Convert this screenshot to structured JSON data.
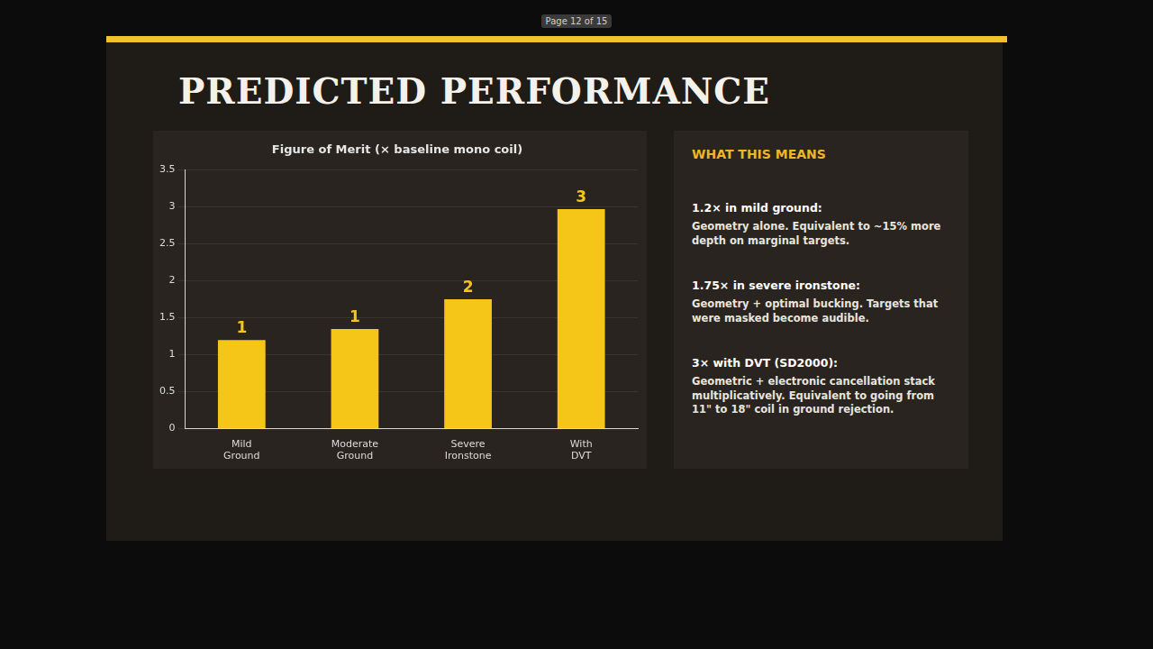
{
  "slide": {
    "page": "Page 12 of 15",
    "title": "PREDICTED PERFORMANCE",
    "panel": {
      "heading": "WHAT THIS MEANS",
      "items": [
        {
          "lead": "1.2× in mild ground:",
          "body": "Geometry alone. Equivalent to ~15% more depth on marginal targets."
        },
        {
          "lead": "1.75× in severe ironstone:",
          "body": "Geometry + optimal bucking. Targets that were masked become audible."
        },
        {
          "lead": "3× with DVT (SD2000):",
          "body": "Geometric + electronic cancellation stack multiplicatively. Equivalent to going from 11\" to 18\" coil in ground rejection."
        }
      ]
    }
  },
  "chart_data": {
    "type": "bar",
    "title": "Figure of Merit (× baseline mono coil)",
    "categories": [
      "Mild Ground",
      "Moderate Ground",
      "Severe Ironstone",
      "With DVT"
    ],
    "values": [
      1.2,
      1.35,
      1.75,
      2.97
    ],
    "value_labels": [
      "1",
      "1",
      "2",
      "3"
    ],
    "data_labels": true,
    "color": "#f5c518",
    "ylim": [
      0,
      3.5
    ],
    "yticks": [
      0,
      0.5,
      1,
      1.5,
      2,
      2.5,
      3,
      3.5
    ],
    "grid": true
  }
}
